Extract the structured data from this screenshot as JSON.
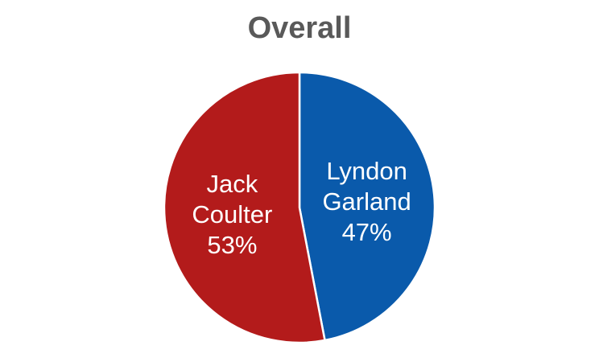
{
  "chart_data": {
    "type": "pie",
    "title": "Overall",
    "slices": [
      {
        "name": "Lyndon Garland",
        "label_lines": [
          "Lyndon",
          "Garland",
          "47%"
        ],
        "value": 47,
        "color": "#0a5aab"
      },
      {
        "name": "Jack Coulter",
        "label_lines": [
          "Jack",
          "Coulter",
          "53%"
        ],
        "value": 53,
        "color": "#b31b1b"
      }
    ],
    "start": "top, clockwise",
    "legend": "none"
  }
}
